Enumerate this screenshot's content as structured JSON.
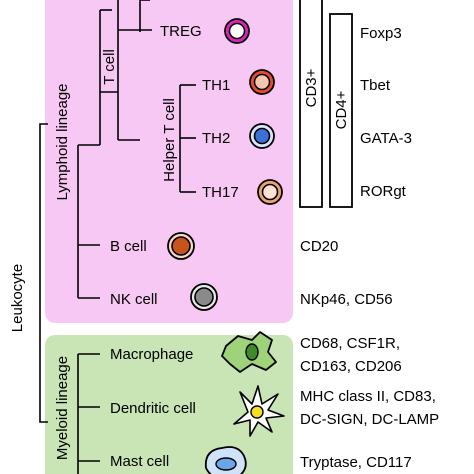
{
  "colors": {
    "lymphoid_bg": "#f8c8f4",
    "myeloid_bg": "#c9e4b5",
    "treg_cell": "#e020c0",
    "th1_cell": "#e94a2a",
    "th2_cell": "#3d6fd8",
    "th17_cell": "#f0a070",
    "b_cell": "#c9531c",
    "nk_cell": "#8a8a8a",
    "macrophage": "#9fd37a",
    "dendritic": "#f5e020",
    "mast": "#6aa6e8"
  },
  "axis": {
    "root": "Leukocyte",
    "lymphoid": "Lymphoid lineage",
    "myeloid": "Myeloid lineage"
  },
  "lymphoid": {
    "t_cell": "T cell",
    "helper_t_cell": "Helper T cell",
    "treg": "TREG",
    "th1": "TH1",
    "th2": "TH2",
    "th17": "TH17",
    "b_cell": "B cell",
    "nk_cell": "NK cell"
  },
  "myeloid": {
    "macrophage": "Macrophage",
    "dendritic": "Dendritic cell",
    "mast": "Mast cell"
  },
  "markers": {
    "cd3": "CD3+",
    "cd4": "CD4+",
    "foxp3": "Foxp3",
    "tbet": "Tbet",
    "gata3": "GATA-3",
    "rorgt": "RORgt",
    "cd20": "CD20",
    "nk": "NKp46, CD56",
    "macro_1": "CD68, CSF1R,",
    "macro_2": "CD163, CD206",
    "dc_1": "MHC class II, CD83,",
    "dc_2": "DC-SIGN, DC-LAMP",
    "mast": "Tryptase, CD117"
  },
  "icons": [
    "treg-cell-icon",
    "th1-cell-icon",
    "th2-cell-icon",
    "th17-cell-icon",
    "b-cell-icon",
    "nk-cell-icon",
    "macrophage-icon",
    "dendritic-cell-icon",
    "mast-cell-icon"
  ]
}
